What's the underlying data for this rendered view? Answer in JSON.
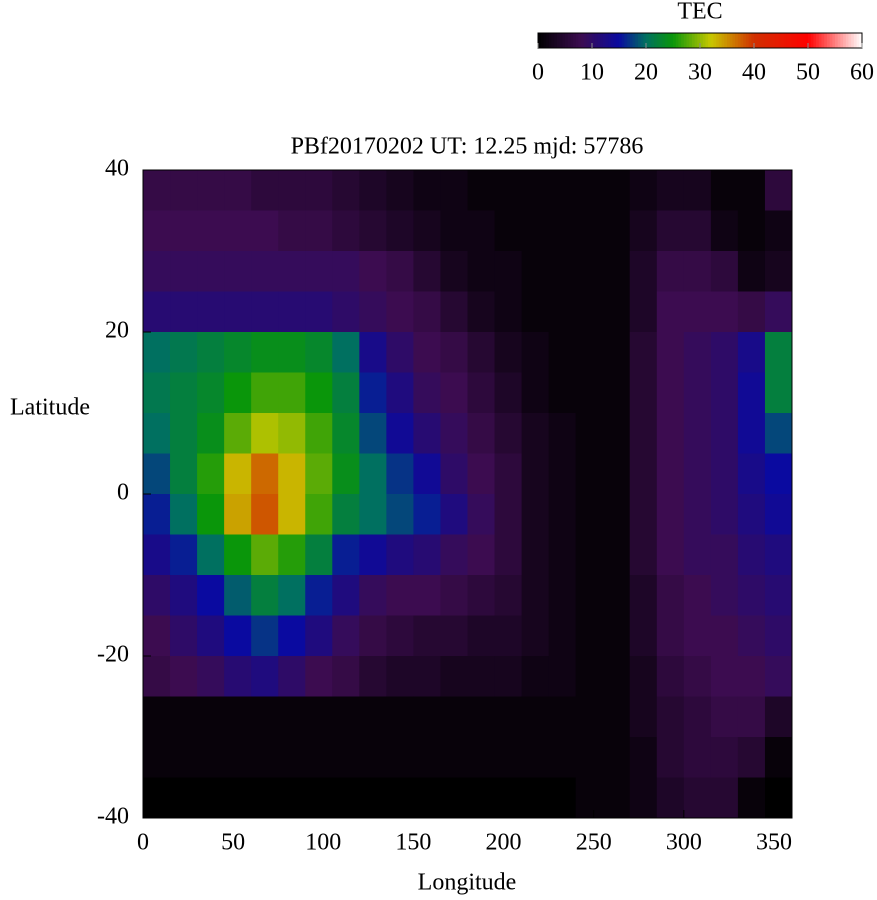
{
  "chart_data": {
    "type": "heatmap",
    "title": "PBf20170202  UT: 12.25  mjd: 57786",
    "xlabel": "Longitude",
    "ylabel": "Latitude",
    "colorbar_title": "TEC",
    "x": [
      7.5,
      22.5,
      37.5,
      52.5,
      67.5,
      82.5,
      97.5,
      112.5,
      127.5,
      142.5,
      157.5,
      172.5,
      187.5,
      202.5,
      217.5,
      232.5,
      247.5,
      262.5,
      277.5,
      292.5,
      307.5,
      322.5,
      337.5,
      352.5
    ],
    "y": [
      37.5,
      32.5,
      27.5,
      22.5,
      17.5,
      12.5,
      7.5,
      2.5,
      -2.5,
      -7.5,
      -12.5,
      -17.5,
      -22.5,
      -27.5,
      -32.5,
      -37.5
    ],
    "values": [
      [
        7,
        7,
        7,
        7,
        6,
        6,
        6,
        5,
        4,
        3,
        2,
        2,
        1,
        1,
        1,
        1,
        1,
        1,
        2,
        3,
        3,
        1,
        1,
        6
      ],
      [
        8,
        8,
        8,
        8,
        8,
        7,
        7,
        6,
        5,
        4,
        3,
        2,
        2,
        1,
        1,
        1,
        1,
        1,
        3,
        5,
        5,
        2,
        1,
        2
      ],
      [
        9,
        9,
        9,
        9,
        9,
        9,
        9,
        9,
        8,
        7,
        5,
        3,
        2,
        2,
        1,
        1,
        1,
        1,
        4,
        7,
        7,
        6,
        2,
        3
      ],
      [
        11,
        11,
        11,
        11,
        11,
        11,
        11,
        10,
        9,
        8,
        7,
        5,
        3,
        2,
        1,
        1,
        1,
        1,
        4,
        8,
        8,
        8,
        7,
        9
      ],
      [
        20,
        21,
        22,
        23,
        24,
        24,
        23,
        20,
        13,
        10,
        8,
        7,
        5,
        3,
        2,
        1,
        1,
        1,
        5,
        8,
        9,
        10,
        13,
        22
      ],
      [
        21,
        22,
        23,
        25,
        27,
        27,
        25,
        22,
        16,
        12,
        9,
        8,
        6,
        4,
        2,
        1,
        1,
        1,
        5,
        8,
        9,
        10,
        14,
        22
      ],
      [
        20,
        22,
        24,
        28,
        31,
        30,
        27,
        23,
        18,
        14,
        11,
        9,
        7,
        5,
        3,
        2,
        1,
        1,
        5,
        8,
        9,
        10,
        14,
        18
      ],
      [
        18,
        22,
        26,
        33,
        37,
        33,
        28,
        24,
        20,
        17,
        14,
        10,
        8,
        6,
        3,
        2,
        1,
        1,
        5,
        8,
        9,
        10,
        13,
        15
      ],
      [
        16,
        20,
        25,
        34,
        38,
        33,
        27,
        22,
        20,
        18,
        16,
        12,
        9,
        6,
        3,
        2,
        1,
        1,
        5,
        8,
        9,
        10,
        12,
        14
      ],
      [
        13,
        16,
        20,
        25,
        28,
        26,
        22,
        16,
        14,
        12,
        11,
        9,
        8,
        6,
        3,
        2,
        1,
        1,
        5,
        8,
        9,
        9,
        11,
        12
      ],
      [
        10,
        12,
        15,
        19,
        22,
        20,
        16,
        12,
        9,
        8,
        8,
        7,
        6,
        5,
        3,
        2,
        1,
        1,
        4,
        7,
        8,
        9,
        10,
        11
      ],
      [
        8,
        10,
        12,
        15,
        17,
        15,
        12,
        9,
        7,
        6,
        5,
        5,
        4,
        4,
        3,
        2,
        1,
        1,
        4,
        7,
        8,
        8,
        9,
        10
      ],
      [
        7,
        8,
        9,
        11,
        12,
        10,
        8,
        7,
        5,
        4,
        4,
        3,
        3,
        3,
        2,
        2,
        1,
        1,
        3,
        6,
        7,
        8,
        8,
        9
      ],
      [
        1,
        1,
        1,
        1,
        1,
        1,
        1,
        1,
        1,
        1,
        1,
        1,
        1,
        1,
        1,
        1,
        1,
        1,
        3,
        5,
        6,
        7,
        7,
        4
      ],
      [
        1,
        1,
        1,
        1,
        1,
        1,
        1,
        1,
        1,
        1,
        1,
        1,
        1,
        1,
        1,
        1,
        1,
        1,
        2,
        5,
        6,
        6,
        5,
        1
      ],
      [
        0,
        0,
        0,
        0,
        0,
        0,
        0,
        0,
        0,
        0,
        0,
        0,
        0,
        0,
        0,
        0,
        1,
        1,
        2,
        4,
        5,
        5,
        1,
        0
      ]
    ],
    "xlim": [
      0,
      360
    ],
    "ylim": [
      -40,
      40
    ],
    "xticks": [
      0,
      50,
      100,
      150,
      200,
      250,
      300,
      350
    ],
    "yticks": [
      -40,
      -20,
      0,
      20,
      40
    ],
    "zlim": [
      0,
      60
    ],
    "zticks": [
      0,
      10,
      20,
      30,
      40,
      50,
      60
    ],
    "colormap": [
      [
        0,
        "#000000"
      ],
      [
        8,
        "#3c0c50"
      ],
      [
        15,
        "#0a0aa0"
      ],
      [
        20,
        "#007060"
      ],
      [
        25,
        "#0a960a"
      ],
      [
        32,
        "#c8c800"
      ],
      [
        40,
        "#d03000"
      ],
      [
        50,
        "#ff0000"
      ],
      [
        60,
        "#ffffff"
      ]
    ]
  }
}
